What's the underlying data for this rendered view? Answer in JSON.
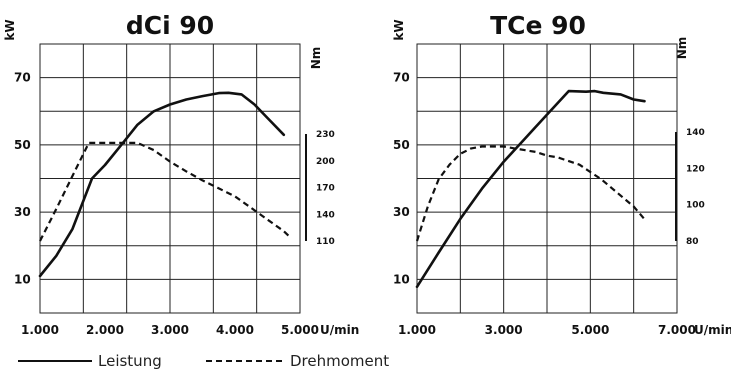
{
  "legend": {
    "power_label": "Leistung",
    "torque_label": "Drehmoment"
  },
  "chart_data": [
    {
      "type": "line",
      "title": "dCi 90",
      "ylabel": "kW",
      "y2label": "Nm",
      "xunit": "U/min",
      "xlim": [
        1000,
        5000
      ],
      "ylim": [
        0,
        80
      ],
      "x_ticks": [
        "1.000",
        "2.000",
        "3.000",
        "4.000",
        "5.000"
      ],
      "y_ticks": [
        70,
        50,
        30,
        10
      ],
      "y2_ticks": [
        230,
        200,
        170,
        140,
        110
      ],
      "y2_range": [
        110,
        230
      ],
      "grid": true,
      "series": [
        {
          "name": "Leistung",
          "axis": "left",
          "style": "solid",
          "x": [
            1000,
            1250,
            1500,
            1800,
            2000,
            2250,
            2500,
            2750,
            3000,
            3250,
            3500,
            3750,
            3900,
            4100,
            4300,
            4500,
            4750
          ],
          "y": [
            11,
            17,
            25,
            40,
            44,
            50,
            56,
            60,
            62,
            63.5,
            64.5,
            65.4,
            65.5,
            65,
            62,
            58,
            53
          ]
        },
        {
          "name": "Drehmoment",
          "axis": "right",
          "style": "dashed",
          "x": [
            1000,
            1250,
            1500,
            1750,
            2000,
            2250,
            2500,
            2750,
            3000,
            3250,
            3500,
            3750,
            4000,
            4250,
            4500,
            4750,
            4850
          ],
          "y": [
            110,
            146,
            183,
            220,
            220,
            220,
            220,
            212,
            199,
            188,
            178,
            169,
            160,
            147,
            134,
            121,
            114
          ]
        }
      ]
    },
    {
      "type": "line",
      "title": "TCe 90",
      "ylabel": "kW",
      "y2label": "Nm",
      "xunit": "U/min",
      "xlim": [
        1000,
        7000
      ],
      "ylim": [
        0,
        80
      ],
      "x_ticks": [
        "1.000",
        "3.000",
        "5.000",
        "7.000"
      ],
      "y_ticks": [
        70,
        50,
        30,
        10
      ],
      "y2_ticks": [
        140,
        120,
        100,
        80
      ],
      "y2_range": [
        80,
        140
      ],
      "grid": true,
      "series": [
        {
          "name": "Leistung",
          "axis": "left",
          "style": "solid",
          "x": [
            1000,
            1500,
            2000,
            2500,
            3000,
            3500,
            4000,
            4500,
            4900,
            5100,
            5300,
            5700,
            6000,
            6250
          ],
          "y": [
            7.8,
            18,
            28,
            37,
            45,
            52,
            59,
            66,
            65.8,
            66,
            65.5,
            65,
            63.5,
            63
          ]
        },
        {
          "name": "Drehmoment",
          "axis": "right",
          "style": "dashed",
          "x": [
            1000,
            1250,
            1500,
            1750,
            2000,
            2250,
            2500,
            2750,
            3000,
            3250,
            3500,
            3750,
            4000,
            4250,
            4500,
            4750,
            5000,
            5250,
            5500,
            5750,
            6000,
            6250
          ],
          "y": [
            80,
            99,
            114,
            122,
            128,
            131,
            132,
            132,
            132,
            131,
            130,
            129,
            127,
            126,
            124,
            122,
            118,
            114,
            109,
            104,
            99,
            92
          ]
        }
      ]
    }
  ]
}
